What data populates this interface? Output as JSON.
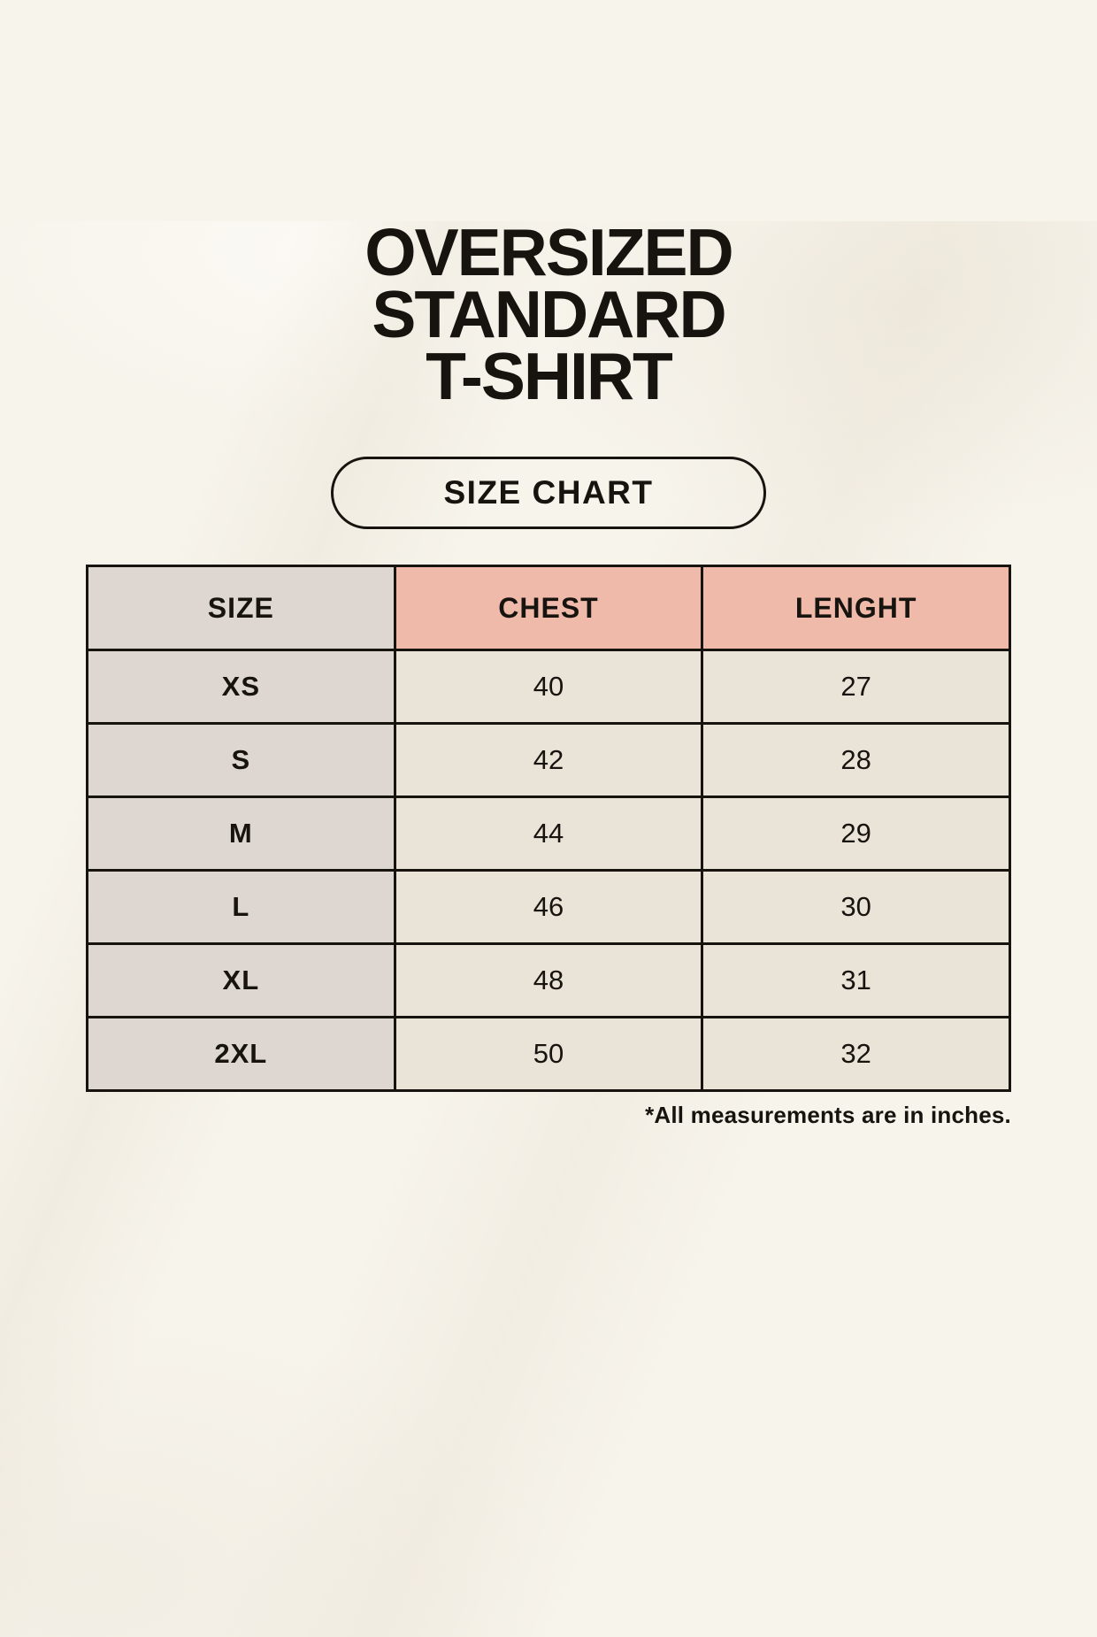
{
  "header": {
    "title_lines": [
      "OVERSIZED",
      "STANDARD",
      "T-SHIRT"
    ],
    "badge_label": "SIZE CHART"
  },
  "chart_data": {
    "type": "table",
    "title": "OVERSIZED STANDARD T-SHIRT",
    "subtitle": "SIZE CHART",
    "columns": [
      "SIZE",
      "CHEST",
      "LENGHT"
    ],
    "rows": [
      [
        "XS",
        "40",
        "27"
      ],
      [
        "S",
        "42",
        "28"
      ],
      [
        "M",
        "44",
        "29"
      ],
      [
        "L",
        "46",
        "30"
      ],
      [
        "XL",
        "48",
        "31"
      ],
      [
        "2XL",
        "50",
        "32"
      ]
    ],
    "footnote": "*All measurements are in inches.",
    "layout": {
      "grid": "on",
      "header_fill_size_col": "#ddd6d1",
      "header_fill_measure_cols": "#efbaaa",
      "body_fill_size_col": "#ddd6d1",
      "body_fill_measure_cols": "#eae3d8",
      "border_color": "#17140f"
    }
  },
  "colors": {
    "background": "#f7f4ec",
    "accent_pink": "#efbaaa",
    "neutral_gray": "#ddd6d1",
    "cell_cream": "#eae3d8",
    "ink": "#17140f"
  }
}
